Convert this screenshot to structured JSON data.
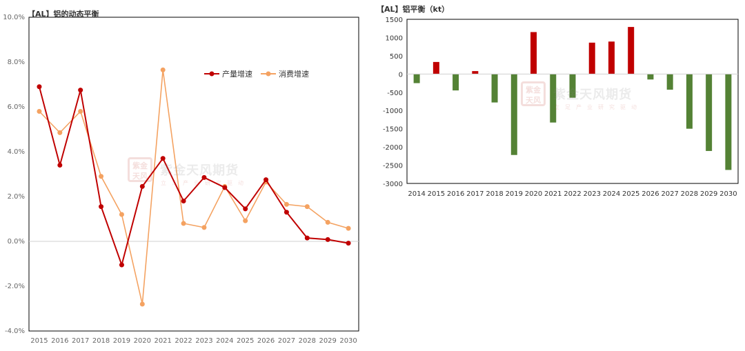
{
  "charts": {
    "left": {
      "title": "【AL】铝的动态平衡"
    },
    "right": {
      "title": "【AL】铝平衡（kt）"
    }
  },
  "colors": {
    "production": "#c00000",
    "consumption": "#f4a261",
    "surplus": "#c00000",
    "deficit": "#548235"
  },
  "watermark": {
    "logo_text": "紫金天风",
    "name": "紫金天风期货",
    "slogan": "立足产业研究驱动"
  },
  "chart_data": [
    {
      "type": "line",
      "x": [
        "2015",
        "2016",
        "2017",
        "2018",
        "2019",
        "2020",
        "2021",
        "2022",
        "2023",
        "2024",
        "2025",
        "2026",
        "2027",
        "2028",
        "2029",
        "2030"
      ],
      "series": [
        {
          "name": "产量增速",
          "values": [
            6.9,
            3.4,
            6.75,
            1.55,
            -1.05,
            2.45,
            3.7,
            1.8,
            2.85,
            2.4,
            1.45,
            2.75,
            1.3,
            0.15,
            0.08,
            -0.08
          ]
        },
        {
          "name": "消费增速",
          "values": [
            5.8,
            4.85,
            5.8,
            2.9,
            1.2,
            -2.8,
            7.65,
            0.8,
            0.62,
            2.45,
            0.92,
            2.65,
            1.65,
            1.55,
            0.85,
            0.58
          ]
        }
      ],
      "yticks": [
        "10.0%",
        "8.0%",
        "6.0%",
        "4.0%",
        "2.0%",
        "0.0%",
        "-2.0%",
        "-4.0%"
      ],
      "ylim": [
        -4,
        10
      ],
      "legend": "top-right",
      "grid": false
    },
    {
      "type": "bar",
      "categories": [
        "2014",
        "2015",
        "2016",
        "2017",
        "2018",
        "2019",
        "2020",
        "2021",
        "2022",
        "2023",
        "2024",
        "2025",
        "2026",
        "2027",
        "2028",
        "2029",
        "2030"
      ],
      "values": [
        -250,
        330,
        -450,
        80,
        -780,
        -2220,
        1150,
        -1330,
        -650,
        860,
        890,
        1290,
        -150,
        -430,
        -1500,
        -2110,
        -2630
      ],
      "yticks": [
        "1500",
        "1000",
        "500",
        "0",
        "-500",
        "-1000",
        "-1500",
        "-2000",
        "-2500",
        "-3000"
      ],
      "ylim": [
        -3000,
        1500
      ],
      "grid": false
    }
  ]
}
